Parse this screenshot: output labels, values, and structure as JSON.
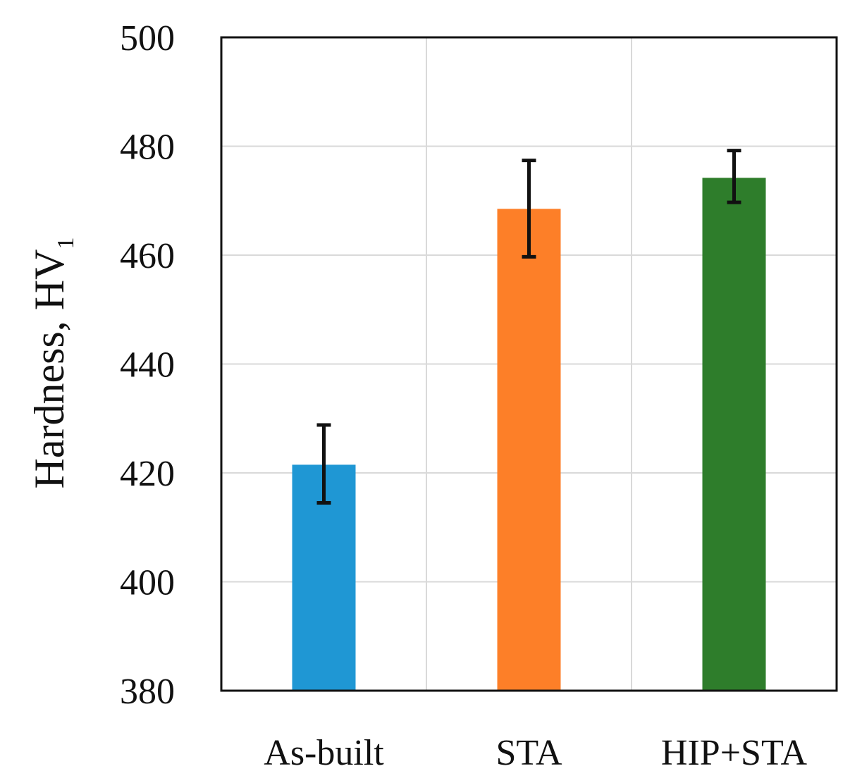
{
  "chart_data": {
    "type": "bar",
    "title": "",
    "xlabel": "",
    "ylabel": "Hardness, HV",
    "ylabel_subscript": "1",
    "categories": [
      "As-built",
      "STA",
      "HIP+STA"
    ],
    "values": [
      421.5,
      468.5,
      474.2
    ],
    "error_low": [
      414.5,
      459.7,
      469.7
    ],
    "error_high": [
      428.8,
      477.4,
      479.2
    ],
    "colors": [
      "#1f97d4",
      "#fd7f28",
      "#2e7d2b"
    ],
    "ylim": [
      380,
      500
    ],
    "yticks": [
      380,
      400,
      420,
      440,
      460,
      480,
      500
    ],
    "grid": true
  }
}
